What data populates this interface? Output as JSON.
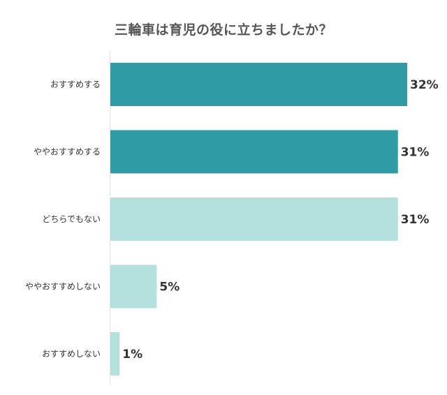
{
  "chart_data": {
    "type": "bar",
    "orientation": "horizontal",
    "title": "三輪車は育児の役に立ちましたか？",
    "categories": [
      "おすすめする",
      "ややおすすめする",
      "どちらでもない",
      "ややおすすめしない",
      "おすすめしない"
    ],
    "values": [
      32,
      31,
      31,
      5,
      1
    ],
    "value_labels": [
      "32%",
      "31%",
      "31%",
      "5%",
      "1%"
    ],
    "colors": [
      "#2f9ba5",
      "#2f9ba5",
      "#b3e0dd",
      "#b3e0dd",
      "#b3e0dd"
    ],
    "xlim": [
      0,
      32
    ],
    "grid": false,
    "legend": false
  }
}
